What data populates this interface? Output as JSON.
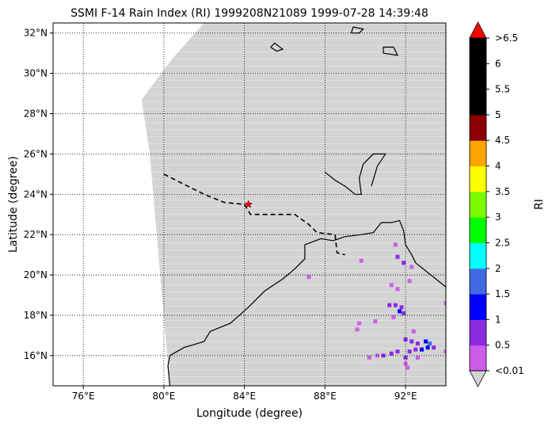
{
  "chart_data": {
    "type": "heatmap",
    "title": "SSMI F-14 Rain Index (RI) 1999208N21089 1999-07-28 14:39:48",
    "xlabel": "Longitude (degree)",
    "ylabel": "Latitude (degree)",
    "xlim": [
      74.5,
      94.0
    ],
    "ylim": [
      14.5,
      32.5
    ],
    "xticks": [
      76,
      80,
      84,
      88,
      92
    ],
    "xtick_labels": [
      "76°E",
      "80°E",
      "84°E",
      "88°E",
      "92°E"
    ],
    "yticks": [
      16,
      18,
      20,
      22,
      24,
      26,
      28,
      30,
      32
    ],
    "ytick_labels": [
      "16°N",
      "18°N",
      "20°N",
      "22°N",
      "24°N",
      "26°N",
      "28°N",
      "30°N",
      "32°N"
    ],
    "grid": true,
    "colorbar": {
      "label": "RI",
      "boundaries": [
        0.01,
        0.5,
        1,
        1.5,
        2,
        2.5,
        3,
        3.5,
        4,
        4.5,
        5,
        5.5,
        6,
        6.5
      ],
      "tick_labels": [
        "<0.01",
        "0.5",
        "1",
        "1.5",
        "2",
        "2.5",
        "3",
        "3.5",
        "4",
        "4.5",
        "5",
        "5.5",
        "6",
        ">6.5"
      ],
      "colors": [
        "#cd5ce8",
        "#8a2be2",
        "#0000ff",
        "#4169e1",
        "#00ffff",
        "#00ff00",
        "#7cfc00",
        "#ffff00",
        "#ffa500",
        "#8b0000",
        "#000000",
        "#000000",
        "#000000"
      ],
      "under_color": "#d3d3d3",
      "over_color": "#ff0000"
    },
    "swath": {
      "color": "#d3d3d3",
      "value": "<0.01",
      "boundary": [
        [
          80.3,
          14.5
        ],
        [
          79.3,
          26.0
        ],
        [
          78.9,
          28.7
        ],
        [
          80.4,
          30.7
        ],
        [
          82.0,
          32.5
        ],
        [
          88.7,
          32.5
        ],
        [
          94.0,
          32.5
        ],
        [
          94.0,
          14.5
        ]
      ]
    },
    "rain_points": [
      {
        "lon": 89.8,
        "lat": 20.7,
        "ri": 0.3
      },
      {
        "lon": 91.5,
        "lat": 21.5,
        "ri": 0.3
      },
      {
        "lon": 91.6,
        "lat": 20.9,
        "ri": 0.6
      },
      {
        "lon": 91.9,
        "lat": 20.6,
        "ri": 0.6
      },
      {
        "lon": 92.3,
        "lat": 20.4,
        "ri": 0.3
      },
      {
        "lon": 92.2,
        "lat": 19.7,
        "ri": 0.3
      },
      {
        "lon": 91.3,
        "lat": 19.5,
        "ri": 0.3
      },
      {
        "lon": 91.6,
        "lat": 19.3,
        "ri": 0.3
      },
      {
        "lon": 87.2,
        "lat": 19.9,
        "ri": 0.3
      },
      {
        "lon": 91.2,
        "lat": 18.5,
        "ri": 0.6
      },
      {
        "lon": 91.5,
        "lat": 18.5,
        "ri": 0.6
      },
      {
        "lon": 91.8,
        "lat": 18.4,
        "ri": 0.6
      },
      {
        "lon": 91.7,
        "lat": 18.2,
        "ri": 1.2
      },
      {
        "lon": 91.9,
        "lat": 18.1,
        "ri": 0.6
      },
      {
        "lon": 91.4,
        "lat": 17.9,
        "ri": 0.3
      },
      {
        "lon": 90.5,
        "lat": 17.7,
        "ri": 0.3
      },
      {
        "lon": 89.7,
        "lat": 17.6,
        "ri": 0.3
      },
      {
        "lon": 89.6,
        "lat": 17.3,
        "ri": 0.3
      },
      {
        "lon": 92.4,
        "lat": 17.2,
        "ri": 0.3
      },
      {
        "lon": 92.0,
        "lat": 16.8,
        "ri": 0.6
      },
      {
        "lon": 92.3,
        "lat": 16.7,
        "ri": 0.6
      },
      {
        "lon": 92.6,
        "lat": 16.6,
        "ri": 0.6
      },
      {
        "lon": 93.0,
        "lat": 16.7,
        "ri": 1.2
      },
      {
        "lon": 93.2,
        "lat": 16.6,
        "ri": 1.6
      },
      {
        "lon": 93.1,
        "lat": 16.4,
        "ri": 1.2
      },
      {
        "lon": 92.8,
        "lat": 16.3,
        "ri": 1.2
      },
      {
        "lon": 93.4,
        "lat": 16.4,
        "ri": 0.6
      },
      {
        "lon": 92.5,
        "lat": 16.3,
        "ri": 0.6
      },
      {
        "lon": 92.2,
        "lat": 16.2,
        "ri": 0.6
      },
      {
        "lon": 91.6,
        "lat": 16.2,
        "ri": 0.6
      },
      {
        "lon": 91.3,
        "lat": 16.1,
        "ri": 0.6
      },
      {
        "lon": 90.9,
        "lat": 16.0,
        "ri": 0.6
      },
      {
        "lon": 90.6,
        "lat": 16.0,
        "ri": 0.3
      },
      {
        "lon": 92.0,
        "lat": 15.9,
        "ri": 0.6
      },
      {
        "lon": 92.6,
        "lat": 15.9,
        "ri": 0.3
      },
      {
        "lon": 90.2,
        "lat": 15.9,
        "ri": 0.3
      },
      {
        "lon": 92.0,
        "lat": 15.6,
        "ri": 0.3
      },
      {
        "lon": 92.1,
        "lat": 15.4,
        "ri": 0.3
      },
      {
        "lon": 94.0,
        "lat": 16.2,
        "ri": 0.3
      },
      {
        "lon": 94.0,
        "lat": 18.6,
        "ri": 0.3
      }
    ],
    "storm_center": {
      "lon": 84.2,
      "lat": 23.5,
      "color": "#ff0000"
    },
    "coastlines": [
      [
        [
          80.3,
          14.5
        ],
        [
          80.2,
          15.5
        ],
        [
          80.3,
          16.0
        ],
        [
          81.0,
          16.4
        ],
        [
          82.0,
          16.7
        ],
        [
          82.3,
          17.2
        ],
        [
          83.3,
          17.6
        ],
        [
          84.2,
          18.4
        ],
        [
          85.0,
          19.2
        ],
        [
          85.9,
          19.8
        ],
        [
          86.5,
          20.3
        ],
        [
          87.0,
          20.8
        ],
        [
          87.0,
          21.5
        ],
        [
          87.8,
          21.8
        ],
        [
          88.4,
          21.7
        ],
        [
          89.0,
          21.9
        ],
        [
          89.8,
          22.0
        ],
        [
          90.4,
          22.1
        ],
        [
          90.8,
          22.6
        ],
        [
          91.3,
          22.6
        ],
        [
          91.7,
          22.7
        ],
        [
          91.9,
          22.2
        ],
        [
          92.0,
          21.5
        ],
        [
          92.3,
          21.0
        ],
        [
          92.5,
          20.6
        ],
        [
          93.0,
          20.2
        ],
        [
          93.5,
          19.8
        ],
        [
          94.0,
          19.4
        ]
      ],
      [
        [
          88.0,
          25.1
        ],
        [
          88.5,
          24.7
        ],
        [
          89.0,
          24.4
        ],
        [
          89.5,
          24.0
        ],
        [
          89.8,
          24.0
        ],
        [
          89.7,
          24.8
        ],
        [
          89.9,
          25.5
        ],
        [
          90.4,
          26.0
        ],
        [
          91.0,
          26.0
        ],
        [
          90.6,
          25.4
        ],
        [
          90.3,
          24.4
        ]
      ],
      [
        [
          85.3,
          31.3
        ],
        [
          85.6,
          31.1
        ],
        [
          85.9,
          31.2
        ],
        [
          85.5,
          31.5
        ],
        [
          85.3,
          31.3
        ]
      ],
      [
        [
          90.9,
          31.0
        ],
        [
          91.6,
          30.9
        ],
        [
          91.4,
          31.3
        ],
        [
          90.9,
          31.3
        ],
        [
          90.9,
          31.0
        ]
      ],
      [
        [
          89.3,
          32.0
        ],
        [
          89.7,
          32.0
        ],
        [
          89.9,
          32.2
        ],
        [
          89.4,
          32.3
        ],
        [
          89.3,
          32.0
        ]
      ]
    ],
    "borders_dashed": [
      [
        [
          80.0,
          25.0
        ],
        [
          81.0,
          24.5
        ],
        [
          82.0,
          24.0
        ],
        [
          83.0,
          23.6
        ],
        [
          84.0,
          23.5
        ],
        [
          84.3,
          23.0
        ],
        [
          85.5,
          23.0
        ],
        [
          86.5,
          23.0
        ],
        [
          87.2,
          22.5
        ],
        [
          87.6,
          22.1
        ],
        [
          88.5,
          22.0
        ],
        [
          88.6,
          21.1
        ],
        [
          89.0,
          21.0
        ]
      ]
    ]
  }
}
